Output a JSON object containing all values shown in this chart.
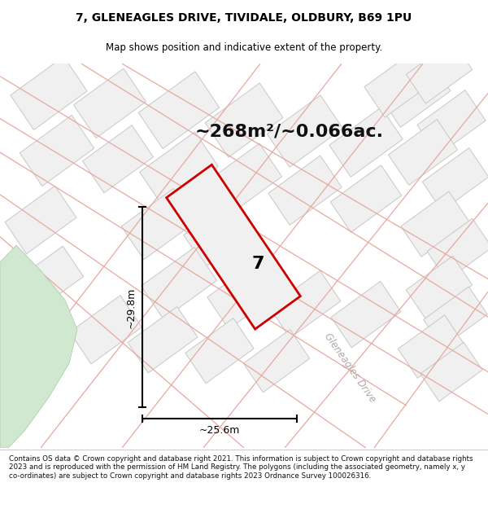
{
  "title_line1": "7, GLENEAGLES DRIVE, TIVIDALE, OLDBURY, B69 1PU",
  "title_line2": "Map shows position and indicative extent of the property.",
  "area_text": "~268m²/~0.066ac.",
  "footer_text": "Contains OS data © Crown copyright and database right 2021. This information is subject to Crown copyright and database rights 2023 and is reproduced with the permission of HM Land Registry. The polygons (including the associated geometry, namely x, y co-ordinates) are subject to Crown copyright and database rights 2023 Ordnance Survey 100026316.",
  "dim_width": "~25.6m",
  "dim_height": "~29.8m",
  "map_bg": "#f5f5f5",
  "plot_fill": "#f0f0f0",
  "plot_outline": "#c8c8c8",
  "prop_fill": "#f0f0f0",
  "prop_outline": "#cc0000",
  "road_line_color": "#e8a8a0",
  "green_area": "#d0e8d0",
  "road_text_color": "#b0a8a8",
  "title_color": "#000000",
  "dim_line_color": "#000000",
  "number_color": "#000000",
  "footer_color": "#111111"
}
